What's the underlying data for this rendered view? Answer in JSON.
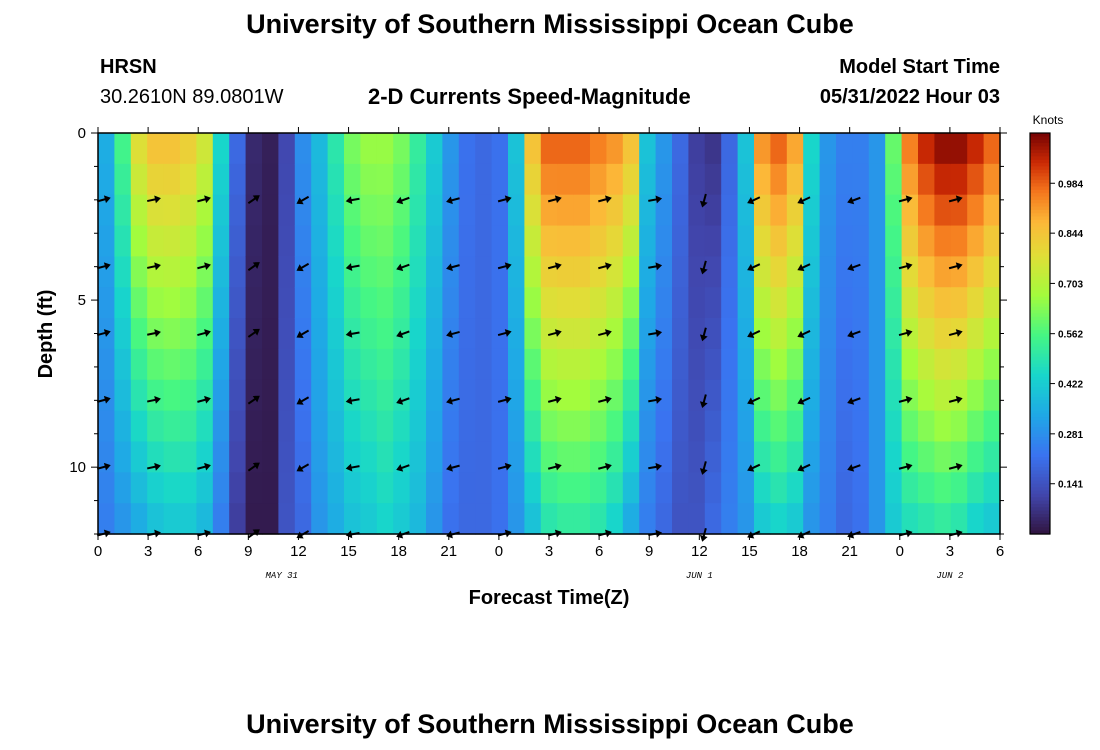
{
  "header": {
    "title": "University of Southern Mississippi Ocean Cube",
    "station": "HRSN",
    "coords": "30.2610N  89.0801W",
    "subtitle": "2-D Currents Speed-Magnitude",
    "model_label": "Model Start Time",
    "model_time": "05/31/2022 Hour 03"
  },
  "footer": {
    "title": "University of Southern Mississippi Ocean Cube"
  },
  "colorbar": {
    "unit": "Knots",
    "ticks": [
      "0.984",
      "0.844",
      "0.703",
      "0.562",
      "0.422",
      "0.281",
      "0.141"
    ],
    "tick_values": [
      0.984,
      0.844,
      0.703,
      0.562,
      0.422,
      0.281,
      0.141
    ],
    "vmin": 0.0,
    "vmax": 1.125,
    "colors": {
      "low": "#30123b",
      "mid": "#2ec96a",
      "high": "#7a0403"
    }
  },
  "chart_data": {
    "type": "heatmap",
    "title": "2-D Currents Speed-Magnitude",
    "xlabel": "Forecast Time(Z)",
    "ylabel": "Depth (ft)",
    "x_ticks": [
      "0",
      "3",
      "6",
      "9",
      "12",
      "15",
      "18",
      "21",
      "0",
      "3",
      "6",
      "9",
      "12",
      "15",
      "18",
      "21",
      "0",
      "3",
      "6"
    ],
    "x_range_hours": [
      0,
      54
    ],
    "date_labels": [
      {
        "hour": 11,
        "text": "MAY 31"
      },
      {
        "hour": 36,
        "text": "JUN 1"
      },
      {
        "hour": 51,
        "text": "JUN 2"
      }
    ],
    "y_ticks": [
      "0",
      "5",
      "10"
    ],
    "y_tick_values": [
      0,
      5,
      10
    ],
    "ylim": [
      0,
      12
    ],
    "depths_ft": [
      0,
      1,
      2,
      3,
      4,
      5,
      6,
      7,
      8,
      9,
      10,
      11,
      12
    ],
    "hours": [
      0,
      1,
      2,
      3,
      4,
      5,
      6,
      7,
      8,
      9,
      10,
      11,
      12,
      13,
      14,
      15,
      16,
      17,
      18,
      19,
      20,
      21,
      22,
      23,
      24,
      25,
      26,
      27,
      28,
      29,
      30,
      31,
      32,
      33,
      34,
      35,
      36,
      37,
      38,
      39,
      40,
      41,
      42,
      43,
      44,
      45,
      46,
      47,
      48,
      49,
      50,
      51,
      52,
      53,
      54
    ],
    "surface_speed_knots": [
      0.35,
      0.55,
      0.78,
      0.85,
      0.85,
      0.82,
      0.75,
      0.45,
      0.2,
      0.05,
      0.03,
      0.12,
      0.28,
      0.38,
      0.5,
      0.62,
      0.66,
      0.66,
      0.62,
      0.52,
      0.42,
      0.3,
      0.22,
      0.2,
      0.22,
      0.4,
      0.85,
      0.98,
      0.98,
      0.98,
      0.95,
      0.92,
      0.85,
      0.4,
      0.3,
      0.2,
      0.1,
      0.08,
      0.2,
      0.4,
      0.92,
      0.98,
      0.9,
      0.45,
      0.3,
      0.25,
      0.25,
      0.3,
      0.6,
      0.95,
      1.05,
      1.1,
      1.1,
      1.05,
      0.98
    ],
    "bottom_speed_knots": [
      0.25,
      0.3,
      0.35,
      0.4,
      0.42,
      0.42,
      0.38,
      0.25,
      0.1,
      0.02,
      0.02,
      0.15,
      0.2,
      0.3,
      0.35,
      0.4,
      0.42,
      0.45,
      0.42,
      0.38,
      0.3,
      0.22,
      0.2,
      0.2,
      0.22,
      0.3,
      0.4,
      0.5,
      0.52,
      0.52,
      0.5,
      0.45,
      0.35,
      0.25,
      0.2,
      0.15,
      0.15,
      0.2,
      0.25,
      0.3,
      0.42,
      0.45,
      0.42,
      0.3,
      0.25,
      0.2,
      0.22,
      0.3,
      0.42,
      0.48,
      0.5,
      0.52,
      0.5,
      0.45,
      0.42
    ],
    "arrows": {
      "hours": [
        0,
        3,
        6,
        9,
        12,
        15,
        18,
        21,
        24,
        27,
        30,
        33,
        36,
        39,
        42,
        45,
        48,
        51
      ],
      "depths_ft": [
        2,
        4,
        6,
        8,
        10,
        12
      ],
      "directions_deg": [
        15,
        12,
        15,
        35,
        210,
        190,
        200,
        195,
        15,
        15,
        15,
        10,
        255,
        205,
        205,
        200,
        15,
        15
      ]
    }
  }
}
